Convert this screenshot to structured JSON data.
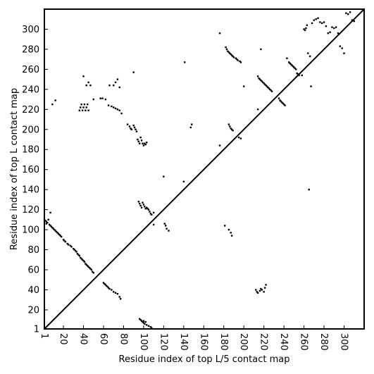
{
  "chart_data": {
    "type": "scatter",
    "title": "",
    "xlabel": "Residue index of top L/5 contact map",
    "ylabel": "Residue index of top L contact map",
    "xlim": [
      1,
      320
    ],
    "ylim": [
      1,
      320
    ],
    "x_ticks": [
      1,
      20,
      40,
      60,
      80,
      100,
      120,
      140,
      160,
      180,
      200,
      220,
      240,
      260,
      280,
      300
    ],
    "y_ticks": [
      1,
      20,
      40,
      60,
      80,
      100,
      120,
      140,
      160,
      180,
      200,
      220,
      240,
      260,
      280,
      300
    ],
    "grid": false,
    "legend": "none",
    "diagonal_line": [
      [
        1,
        1
      ],
      [
        320,
        320
      ]
    ],
    "marker_color": "#000000",
    "points": [
      [
        1,
        110
      ],
      [
        2,
        109
      ],
      [
        3,
        108
      ],
      [
        4,
        107
      ],
      [
        5,
        110
      ],
      [
        3,
        106
      ],
      [
        6,
        105
      ],
      [
        7,
        104
      ],
      [
        8,
        103
      ],
      [
        9,
        102
      ],
      [
        10,
        101
      ],
      [
        11,
        100
      ],
      [
        12,
        99
      ],
      [
        13,
        98
      ],
      [
        14,
        97
      ],
      [
        15,
        96
      ],
      [
        16,
        95
      ],
      [
        17,
        94
      ],
      [
        18,
        93
      ],
      [
        20,
        90
      ],
      [
        21,
        89
      ],
      [
        22,
        88
      ],
      [
        24,
        86
      ],
      [
        25,
        85
      ],
      [
        27,
        84
      ],
      [
        28,
        83
      ],
      [
        30,
        81
      ],
      [
        31,
        80
      ],
      [
        32,
        79
      ],
      [
        33,
        78
      ],
      [
        34,
        76
      ],
      [
        35,
        75
      ],
      [
        36,
        74
      ],
      [
        37,
        72
      ],
      [
        38,
        71
      ],
      [
        39,
        70
      ],
      [
        40,
        69
      ],
      [
        41,
        68
      ],
      [
        42,
        66
      ],
      [
        43,
        65
      ],
      [
        44,
        64
      ],
      [
        45,
        63
      ],
      [
        46,
        62
      ],
      [
        47,
        61
      ],
      [
        48,
        60
      ],
      [
        49,
        58
      ],
      [
        50,
        57
      ],
      [
        7,
        117
      ],
      [
        9,
        225
      ],
      [
        12,
        229
      ],
      [
        36,
        219
      ],
      [
        37,
        222
      ],
      [
        38,
        225
      ],
      [
        39,
        219
      ],
      [
        40,
        222
      ],
      [
        41,
        225
      ],
      [
        42,
        219
      ],
      [
        43,
        222
      ],
      [
        44,
        225
      ],
      [
        45,
        219
      ],
      [
        40,
        253
      ],
      [
        43,
        244
      ],
      [
        45,
        247
      ],
      [
        47,
        244
      ],
      [
        50,
        230
      ],
      [
        57,
        231
      ],
      [
        59,
        231
      ],
      [
        62,
        230
      ],
      [
        65,
        224
      ],
      [
        68,
        223
      ],
      [
        70,
        222
      ],
      [
        72,
        221
      ],
      [
        74,
        220
      ],
      [
        76,
        219
      ],
      [
        78,
        216
      ],
      [
        66,
        244
      ],
      [
        70,
        244
      ],
      [
        72,
        247
      ],
      [
        74,
        250
      ],
      [
        76,
        242
      ],
      [
        84,
        205
      ],
      [
        86,
        203
      ],
      [
        87,
        201
      ],
      [
        88,
        200
      ],
      [
        90,
        204
      ],
      [
        91,
        202
      ],
      [
        92,
        200
      ],
      [
        93,
        198
      ],
      [
        94,
        190
      ],
      [
        95,
        188
      ],
      [
        96,
        186
      ],
      [
        97,
        192
      ],
      [
        98,
        189
      ],
      [
        99,
        186
      ],
      [
        100,
        184
      ],
      [
        101,
        186
      ],
      [
        102,
        185
      ],
      [
        103,
        187
      ],
      [
        95,
        128
      ],
      [
        96,
        126
      ],
      [
        97,
        124
      ],
      [
        98,
        122
      ],
      [
        99,
        127
      ],
      [
        100,
        125
      ],
      [
        101,
        123
      ],
      [
        102,
        121
      ],
      [
        103,
        122
      ],
      [
        104,
        121
      ],
      [
        105,
        120
      ],
      [
        106,
        118
      ],
      [
        107,
        116
      ],
      [
        108,
        115
      ],
      [
        110,
        117
      ],
      [
        90,
        257
      ],
      [
        121,
        106
      ],
      [
        122,
        104
      ],
      [
        123,
        101
      ],
      [
        125,
        99
      ],
      [
        140,
        148
      ],
      [
        141,
        267
      ],
      [
        147,
        202
      ],
      [
        148,
        205
      ],
      [
        110,
        105
      ],
      [
        120,
        153
      ],
      [
        60,
        47
      ],
      [
        61,
        46
      ],
      [
        62,
        45
      ],
      [
        63,
        44
      ],
      [
        64,
        43
      ],
      [
        65,
        42
      ],
      [
        66,
        41
      ],
      [
        68,
        40
      ],
      [
        70,
        38
      ],
      [
        72,
        37
      ],
      [
        74,
        36
      ],
      [
        76,
        33
      ],
      [
        77,
        31
      ],
      [
        96,
        11
      ],
      [
        97,
        10
      ],
      [
        98,
        9
      ],
      [
        99,
        8
      ],
      [
        100,
        7
      ],
      [
        101,
        6
      ],
      [
        103,
        5
      ],
      [
        105,
        4
      ],
      [
        107,
        3
      ],
      [
        108,
        2
      ],
      [
        100,
        9
      ],
      [
        102,
        8
      ],
      [
        176,
        296
      ],
      [
        182,
        282
      ],
      [
        183,
        280
      ],
      [
        184,
        278
      ],
      [
        185,
        277
      ],
      [
        186,
        276
      ],
      [
        187,
        275
      ],
      [
        188,
        274
      ],
      [
        189,
        273
      ],
      [
        190,
        272
      ],
      [
        192,
        271
      ],
      [
        193,
        270
      ],
      [
        194,
        269
      ],
      [
        196,
        268
      ],
      [
        197,
        267
      ],
      [
        200,
        243
      ],
      [
        214,
        253
      ],
      [
        215,
        251
      ],
      [
        216,
        250
      ],
      [
        217,
        249
      ],
      [
        218,
        248
      ],
      [
        219,
        247
      ],
      [
        220,
        246
      ],
      [
        221,
        245
      ],
      [
        222,
        244
      ],
      [
        223,
        243
      ],
      [
        224,
        242
      ],
      [
        225,
        241
      ],
      [
        226,
        240
      ],
      [
        227,
        239
      ],
      [
        228,
        238
      ],
      [
        217,
        280
      ],
      [
        235,
        231
      ],
      [
        236,
        229
      ],
      [
        237,
        228
      ],
      [
        238,
        227
      ],
      [
        239,
        226
      ],
      [
        240,
        225
      ],
      [
        241,
        224
      ],
      [
        243,
        271
      ],
      [
        245,
        267
      ],
      [
        246,
        266
      ],
      [
        247,
        265
      ],
      [
        248,
        264
      ],
      [
        249,
        263
      ],
      [
        250,
        262
      ],
      [
        251,
        261
      ],
      [
        252,
        260
      ],
      [
        253,
        256
      ],
      [
        254,
        255
      ],
      [
        255,
        254
      ],
      [
        258,
        254
      ],
      [
        260,
        300
      ],
      [
        261,
        299
      ],
      [
        262,
        301
      ],
      [
        263,
        304
      ],
      [
        264,
        276
      ],
      [
        265,
        140
      ],
      [
        266,
        273
      ],
      [
        267,
        243
      ],
      [
        268,
        306
      ],
      [
        270,
        309
      ],
      [
        272,
        310
      ],
      [
        274,
        311
      ],
      [
        276,
        307
      ],
      [
        278,
        306
      ],
      [
        280,
        307
      ],
      [
        282,
        303
      ],
      [
        284,
        296
      ],
      [
        286,
        297
      ],
      [
        288,
        302
      ],
      [
        290,
        301
      ],
      [
        292,
        302
      ],
      [
        294,
        296
      ],
      [
        296,
        283
      ],
      [
        298,
        281
      ],
      [
        300,
        276
      ],
      [
        302,
        316
      ],
      [
        304,
        315
      ],
      [
        306,
        317
      ],
      [
        308,
        309
      ],
      [
        310,
        308
      ],
      [
        214,
        220
      ],
      [
        185,
        205
      ],
      [
        186,
        203
      ],
      [
        187,
        201
      ],
      [
        188,
        200
      ],
      [
        189,
        199
      ],
      [
        195,
        192
      ],
      [
        197,
        191
      ],
      [
        176,
        184
      ],
      [
        181,
        104
      ],
      [
        185,
        100
      ],
      [
        187,
        97
      ],
      [
        188,
        94
      ],
      [
        212,
        40
      ],
      [
        213,
        38
      ],
      [
        214,
        37
      ],
      [
        216,
        39
      ],
      [
        217,
        41
      ],
      [
        218,
        40
      ],
      [
        220,
        38
      ],
      [
        221,
        42
      ],
      [
        222,
        45
      ]
    ]
  }
}
